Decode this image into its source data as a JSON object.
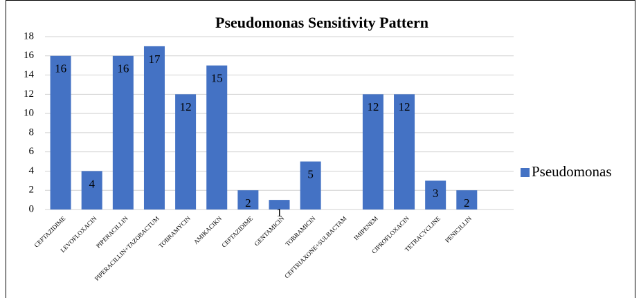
{
  "chart_data": {
    "type": "bar",
    "title": "Pseudomonas Sensitivity Pattern",
    "categories": [
      "CEFTAZIDIME",
      "LEVOFLOXACIN",
      "PIPERACILLIN",
      "PIPERACILLIN+TAZOBACTUM",
      "TOBRAMYCIN",
      "AMIKACIKN",
      "CEFTAZIDIME",
      "GENTAMICIN",
      "TOBRAMICIN",
      "CEFTRIAXONE+SULBACTAM",
      "IMIPENEM",
      "CIPROFLOXACIN",
      "TETRACYCLINE",
      "PENICILLIN"
    ],
    "series": [
      {
        "name": "Pseudomonas",
        "color": "#4472c4",
        "values": [
          16,
          4,
          16,
          17,
          12,
          15,
          2,
          1,
          5,
          null,
          12,
          12,
          3,
          2
        ]
      }
    ],
    "ylim": [
      0,
      18
    ],
    "yticks": [
      0,
      2,
      4,
      6,
      8,
      10,
      12,
      14,
      16,
      18
    ],
    "grid": true,
    "legend": "right"
  }
}
